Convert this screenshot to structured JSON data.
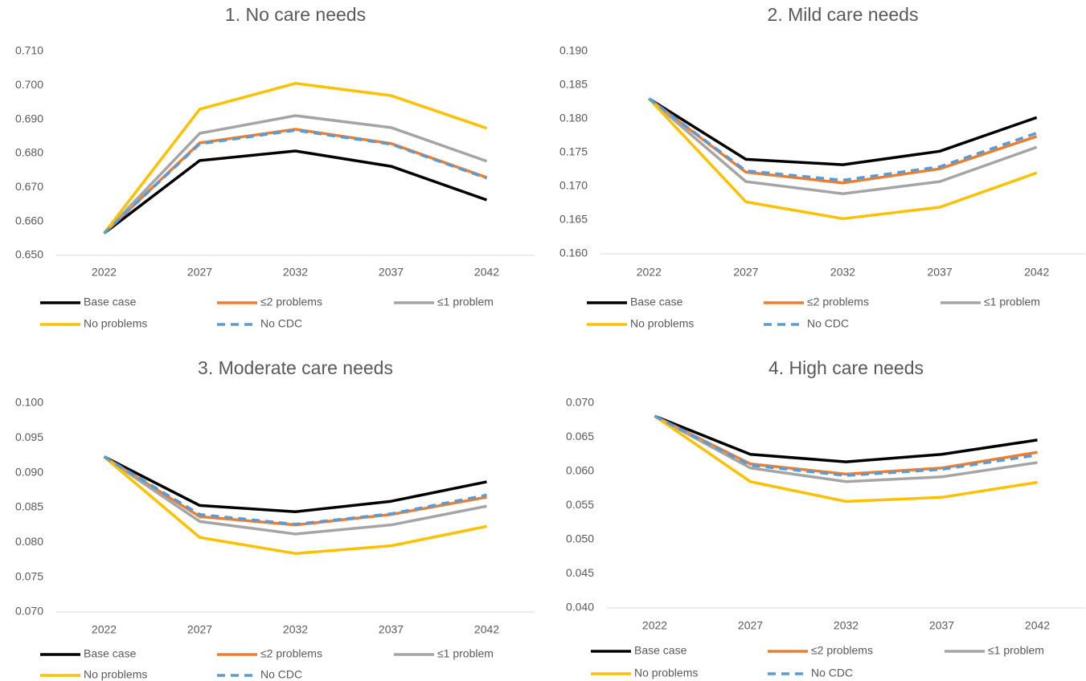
{
  "chart_data": [
    {
      "type": "line",
      "title": "1. No care needs",
      "categories": [
        "2022",
        "2027",
        "2032",
        "2037",
        "2042"
      ],
      "ylim": [
        0.65,
        0.71
      ],
      "yticks": [
        {
          "value": 0.65,
          "label": "0.650"
        },
        {
          "value": 0.66,
          "label": "0.660"
        },
        {
          "value": 0.67,
          "label": "0.670"
        },
        {
          "value": 0.68,
          "label": "0.680"
        },
        {
          "value": 0.69,
          "label": "0.690"
        },
        {
          "value": 0.7,
          "label": "0.700"
        },
        {
          "value": 0.71,
          "label": "0.710"
        }
      ],
      "grid": false,
      "legend": "bottom",
      "series": [
        {
          "name": "Base case",
          "color": "#000000",
          "dashed": false,
          "values": [
            0.6565,
            0.6779,
            0.6807,
            0.6762,
            0.6663
          ]
        },
        {
          "name": "≤2 problems",
          "color": "#ed7d31",
          "dashed": false,
          "values": [
            0.6565,
            0.6831,
            0.6871,
            0.6829,
            0.6729
          ]
        },
        {
          "name": "≤1 problem",
          "color": "#a5a5a5",
          "dashed": false,
          "values": [
            0.6565,
            0.6859,
            0.6911,
            0.6876,
            0.6777
          ]
        },
        {
          "name": "No problems",
          "color": "#ffc000",
          "dashed": false,
          "values": [
            0.6565,
            0.693,
            0.7006,
            0.697,
            0.6874
          ]
        },
        {
          "name": "No CDC",
          "color": "#5b9bd5",
          "dashed": true,
          "values": [
            0.6565,
            0.6828,
            0.6868,
            0.6827,
            0.6727
          ]
        }
      ]
    },
    {
      "type": "line",
      "title": "2. Mild care needs",
      "categories": [
        "2022",
        "2027",
        "2032",
        "2037",
        "2042"
      ],
      "ylim": [
        0.16,
        0.19
      ],
      "yticks": [
        {
          "value": 0.16,
          "label": "0.160"
        },
        {
          "value": 0.165,
          "label": "0.165"
        },
        {
          "value": 0.17,
          "label": "0.170"
        },
        {
          "value": 0.175,
          "label": "0.175"
        },
        {
          "value": 0.18,
          "label": "0.180"
        },
        {
          "value": 0.185,
          "label": "0.185"
        },
        {
          "value": 0.19,
          "label": "0.190"
        }
      ],
      "grid": false,
      "legend": "bottom",
      "series": [
        {
          "name": "Base case",
          "color": "#000000",
          "dashed": false,
          "values": [
            0.183,
            0.174,
            0.1732,
            0.1752,
            0.1802
          ]
        },
        {
          "name": "≤2 problems",
          "color": "#ed7d31",
          "dashed": false,
          "values": [
            0.183,
            0.1721,
            0.1705,
            0.1726,
            0.1774
          ]
        },
        {
          "name": "≤1 problem",
          "color": "#a5a5a5",
          "dashed": false,
          "values": [
            0.183,
            0.1707,
            0.1689,
            0.1707,
            0.1758
          ]
        },
        {
          "name": "No problems",
          "color": "#ffc000",
          "dashed": false,
          "values": [
            0.183,
            0.1677,
            0.1652,
            0.1669,
            0.172
          ]
        },
        {
          "name": "No CDC",
          "color": "#5b9bd5",
          "dashed": true,
          "values": [
            0.183,
            0.1723,
            0.1709,
            0.1729,
            0.1779
          ]
        }
      ]
    },
    {
      "type": "line",
      "title": "3. Moderate care needs",
      "categories": [
        "2022",
        "2027",
        "2032",
        "2037",
        "2042"
      ],
      "ylim": [
        0.07,
        0.1
      ],
      "yticks": [
        {
          "value": 0.07,
          "label": "0.070"
        },
        {
          "value": 0.075,
          "label": "0.075"
        },
        {
          "value": 0.08,
          "label": "0.080"
        },
        {
          "value": 0.085,
          "label": "0.085"
        },
        {
          "value": 0.09,
          "label": "0.090"
        },
        {
          "value": 0.095,
          "label": "0.095"
        },
        {
          "value": 0.1,
          "label": "0.100"
        }
      ],
      "grid": false,
      "legend": "bottom",
      "series": [
        {
          "name": "Base case",
          "color": "#000000",
          "dashed": false,
          "values": [
            0.0923,
            0.0853,
            0.0844,
            0.0859,
            0.0887
          ]
        },
        {
          "name": "≤2 problems",
          "color": "#ed7d31",
          "dashed": false,
          "values": [
            0.0923,
            0.0837,
            0.0825,
            0.084,
            0.0865
          ]
        },
        {
          "name": "≤1 problem",
          "color": "#a5a5a5",
          "dashed": false,
          "values": [
            0.0923,
            0.083,
            0.0812,
            0.0825,
            0.0852
          ]
        },
        {
          "name": "No problems",
          "color": "#ffc000",
          "dashed": false,
          "values": [
            0.0923,
            0.0807,
            0.0784,
            0.0795,
            0.0823
          ]
        },
        {
          "name": "No CDC",
          "color": "#5b9bd5",
          "dashed": true,
          "values": [
            0.0923,
            0.084,
            0.0826,
            0.0841,
            0.0868
          ]
        }
      ]
    },
    {
      "type": "line",
      "title": "4. High care needs",
      "categories": [
        "2022",
        "2027",
        "2032",
        "2037",
        "2042"
      ],
      "ylim": [
        0.04,
        0.07
      ],
      "yticks": [
        {
          "value": 0.04,
          "label": "0.040"
        },
        {
          "value": 0.045,
          "label": "0.045"
        },
        {
          "value": 0.05,
          "label": "0.050"
        },
        {
          "value": 0.055,
          "label": "0.055"
        },
        {
          "value": 0.06,
          "label": "0.060"
        },
        {
          "value": 0.065,
          "label": "0.065"
        },
        {
          "value": 0.07,
          "label": "0.070"
        }
      ],
      "grid": false,
      "legend": "bottom",
      "series": [
        {
          "name": "Base case",
          "color": "#000000",
          "dashed": false,
          "values": [
            0.0681,
            0.0625,
            0.0614,
            0.0625,
            0.0646
          ]
        },
        {
          "name": "≤2 problems",
          "color": "#ed7d31",
          "dashed": false,
          "values": [
            0.0681,
            0.0611,
            0.0596,
            0.0605,
            0.0628
          ]
        },
        {
          "name": "≤1 problem",
          "color": "#a5a5a5",
          "dashed": false,
          "values": [
            0.0681,
            0.0605,
            0.0585,
            0.0592,
            0.0613
          ]
        },
        {
          "name": "No problems",
          "color": "#ffc000",
          "dashed": false,
          "values": [
            0.0681,
            0.0585,
            0.0556,
            0.0562,
            0.0584
          ]
        },
        {
          "name": "No CDC",
          "color": "#5b9bd5",
          "dashed": true,
          "values": [
            0.0681,
            0.0609,
            0.0594,
            0.0603,
            0.0624
          ]
        }
      ]
    }
  ]
}
